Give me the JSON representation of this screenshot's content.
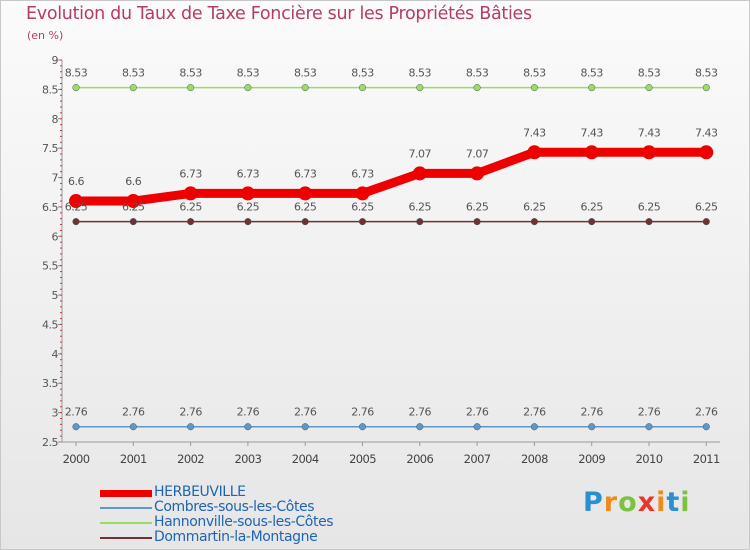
{
  "chart_data": {
    "type": "line",
    "title": "Evolution du Taux de Taxe Foncière sur les Propriétés Bâties",
    "unit_label": "(en %)",
    "xlabel": "",
    "ylabel": "",
    "categories": [
      "2000",
      "2001",
      "2002",
      "2003",
      "2004",
      "2005",
      "2006",
      "2007",
      "2008",
      "2009",
      "2010",
      "2011"
    ],
    "ylim": [
      2.5,
      9
    ],
    "yticks": [
      "2.5",
      "3",
      "3.5",
      "4",
      "4.5",
      "5",
      "5.5",
      "6",
      "6.5",
      "7",
      "7.5",
      "8",
      "8.5",
      "9"
    ],
    "grid": false,
    "legend_position": "bottom-left",
    "series": [
      {
        "name": "HERBEUVILLE",
        "color": "#ee0000",
        "labels": [
          "6.6",
          "6.6",
          "6.73",
          "6.73",
          "6.73",
          "6.73",
          "7.07",
          "7.07",
          "7.43",
          "7.43",
          "7.43",
          "7.43"
        ],
        "values": [
          6.6,
          6.6,
          6.73,
          6.73,
          6.73,
          6.73,
          7.07,
          7.07,
          7.43,
          7.43,
          7.43,
          7.43
        ]
      },
      {
        "name": "Combres-sous-les-Côtes",
        "color": "#5f98c8",
        "labels": [
          "2.76",
          "2.76",
          "2.76",
          "2.76",
          "2.76",
          "2.76",
          "2.76",
          "2.76",
          "2.76",
          "2.76",
          "2.76",
          "2.76"
        ],
        "values": [
          2.76,
          2.76,
          2.76,
          2.76,
          2.76,
          2.76,
          2.76,
          2.76,
          2.76,
          2.76,
          2.76,
          2.76
        ]
      },
      {
        "name": "Hannonville-sous-les-Côtes",
        "color": "#99dd66",
        "labels": [
          "8.53",
          "8.53",
          "8.53",
          "8.53",
          "8.53",
          "8.53",
          "8.53",
          "8.53",
          "8.53",
          "8.53",
          "8.53",
          "8.53"
        ],
        "values": [
          8.53,
          8.53,
          8.53,
          8.53,
          8.53,
          8.53,
          8.53,
          8.53,
          8.53,
          8.53,
          8.53,
          8.53
        ]
      },
      {
        "name": "Dommartin-la-Montagne",
        "color": "#6e3232",
        "labels": [
          "6.25",
          "6.25",
          "6.25",
          "6.25",
          "6.25",
          "6.25",
          "6.25",
          "6.25",
          "6.25",
          "6.25",
          "6.25",
          "6.25"
        ],
        "values": [
          6.25,
          6.25,
          6.25,
          6.25,
          6.25,
          6.25,
          6.25,
          6.25,
          6.25,
          6.25,
          6.25,
          6.25
        ]
      }
    ]
  },
  "logo": {
    "letters": [
      "P",
      "r",
      "o",
      "x",
      "i",
      "t",
      "i"
    ],
    "colors": [
      "#2a8fd0",
      "#f08a1c",
      "#7cc242",
      "#e8352e",
      "#f08a1c",
      "#2a8fd0",
      "#7cc242"
    ]
  }
}
